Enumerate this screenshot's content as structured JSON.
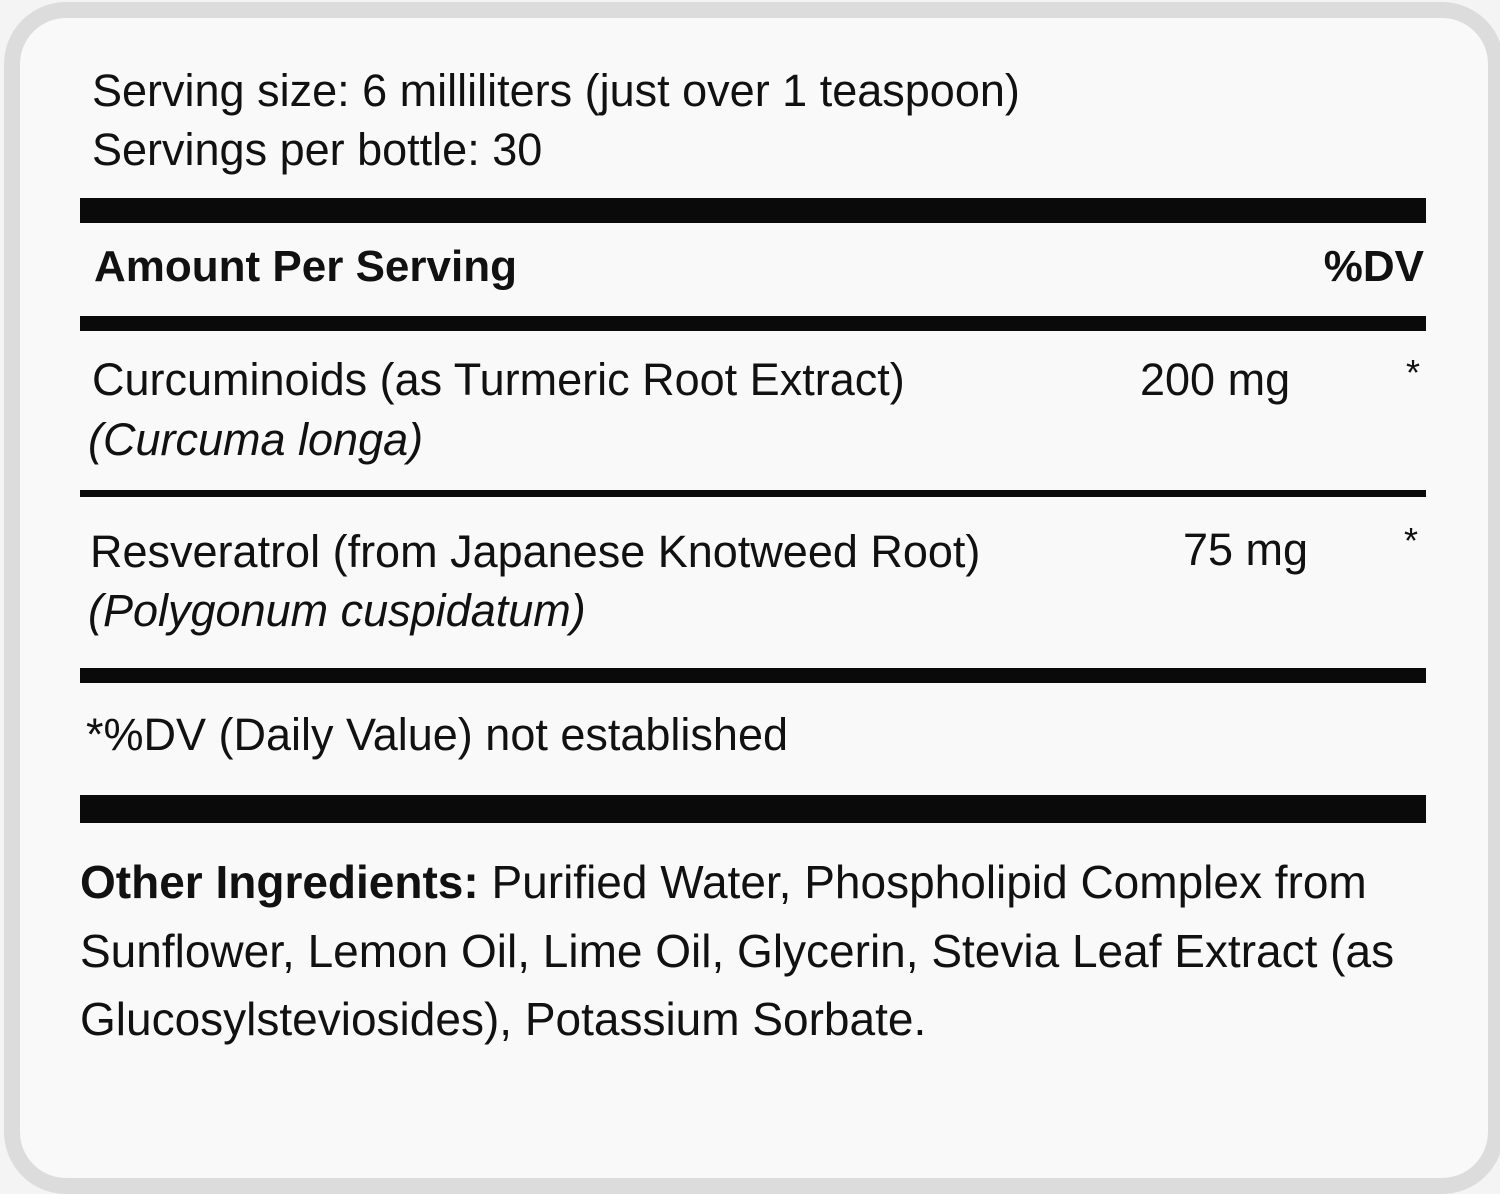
{
  "serving": {
    "size": "Serving size: 6 milliliters (just over 1 teaspoon)",
    "per_bottle": "Servings per bottle: 30"
  },
  "header": {
    "amount_label": "Amount Per Serving",
    "dv_label": "%DV"
  },
  "ingredients": [
    {
      "name": "Curcuminoids (as Turmeric Root Extract)",
      "latin": "(Curcuma longa)",
      "amount": "200 mg",
      "dv": "*"
    },
    {
      "name": "Resveratrol (from Japanese Knotweed Root)",
      "latin": "(Polygonum cuspidatum)",
      "amount": "75 mg",
      "dv": "*"
    }
  ],
  "footnote": "*%DV (Daily Value) not established",
  "other": {
    "label": "Other Ingredients:",
    "text": " Purified Water, Phospholipid Complex from Sunflower, Lemon Oil, Lime Oil, Glycerin, Stevia Leaf Extract (as Glucosylsteviosides), Potassium Sorbate."
  }
}
